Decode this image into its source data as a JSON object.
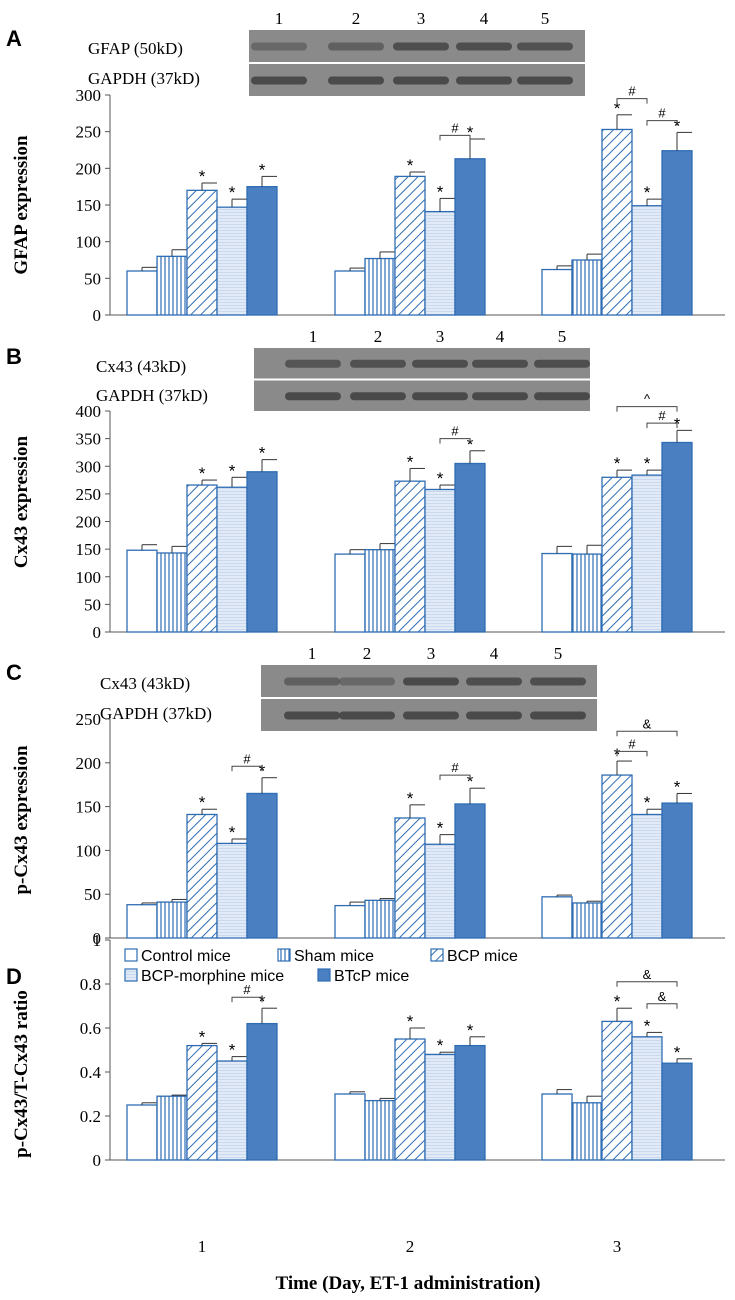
{
  "colors": {
    "series_stroke": "#2e6db4",
    "btcp_fill": "#4a7fc1",
    "bcp_morphine_fill": "#c9d9ee",
    "blot_bg": "#8a8a8a",
    "band": "#3e3e3e"
  },
  "legend_labels": [
    "Control mice",
    "Sham mice",
    "BCP mice",
    "BCP-morphine mice",
    "BTcP mice"
  ],
  "chart_data": [
    {
      "panel": "A",
      "type": "bar",
      "ylabel": "GFAP expression",
      "ylim": [
        0,
        300
      ],
      "yticks": [
        0,
        50,
        100,
        150,
        200,
        250,
        300
      ],
      "tick_labels": [
        "0",
        "50",
        "100",
        "150",
        "200",
        "250",
        "300"
      ],
      "categories": [
        "1",
        "2",
        "3"
      ],
      "series": [
        {
          "name": "Control mice",
          "values": [
            60,
            60,
            62
          ],
          "errors": [
            5,
            4,
            5
          ],
          "stars": [
            false,
            false,
            false
          ]
        },
        {
          "name": "Sham mice",
          "values": [
            80,
            77,
            75
          ],
          "errors": [
            9,
            9,
            8
          ],
          "stars": [
            false,
            false,
            false
          ]
        },
        {
          "name": "BCP mice",
          "values": [
            170,
            189,
            253
          ],
          "errors": [
            10,
            6,
            20
          ],
          "stars": [
            true,
            true,
            true
          ]
        },
        {
          "name": "BCP-morphine mice",
          "values": [
            147,
            141,
            149
          ],
          "errors": [
            11,
            18,
            9
          ],
          "stars": [
            true,
            true,
            true
          ]
        },
        {
          "name": "BTcP mice",
          "values": [
            175,
            213,
            224
          ],
          "errors": [
            14,
            27,
            25
          ],
          "stars": [
            true,
            true,
            true
          ]
        }
      ],
      "brackets": [
        {
          "group": 1,
          "from": 3,
          "to": 4,
          "symbol": "#",
          "value": 245
        },
        {
          "group": 2,
          "from": 2,
          "to": 3,
          "symbol": "#",
          "value": 295
        },
        {
          "group": 2,
          "from": 3,
          "to": 4,
          "symbol": "#",
          "value": 265
        }
      ],
      "blot": {
        "labels": [
          "GFAP (50kD)",
          "GAPDH (37kD)"
        ],
        "lanes": [
          "1",
          "2",
          "3",
          "4",
          "5"
        ]
      }
    },
    {
      "panel": "B",
      "type": "bar",
      "ylabel": "Cx43 expression",
      "ylim": [
        0,
        400
      ],
      "yticks": [
        0,
        50,
        100,
        150,
        200,
        250,
        300,
        350,
        400
      ],
      "tick_labels": [
        "0",
        "50",
        "100",
        "150",
        "200",
        "250",
        "300",
        "350",
        "400"
      ],
      "categories": [
        "1",
        "2",
        "3"
      ],
      "series": [
        {
          "name": "Control mice",
          "values": [
            148,
            141,
            142
          ],
          "errors": [
            10,
            8,
            13
          ],
          "stars": [
            false,
            false,
            false
          ]
        },
        {
          "name": "Sham mice",
          "values": [
            143,
            149,
            141
          ],
          "errors": [
            12,
            11,
            16
          ],
          "stars": [
            false,
            false,
            false
          ]
        },
        {
          "name": "BCP mice",
          "values": [
            266,
            273,
            280
          ],
          "errors": [
            9,
            23,
            13
          ],
          "stars": [
            true,
            true,
            true
          ]
        },
        {
          "name": "BCP-morphine mice",
          "values": [
            262,
            258,
            284
          ],
          "errors": [
            18,
            8,
            9
          ],
          "stars": [
            true,
            true,
            true
          ]
        },
        {
          "name": "BTcP mice",
          "values": [
            290,
            305,
            343
          ],
          "errors": [
            22,
            23,
            22
          ],
          "stars": [
            true,
            true,
            true
          ]
        }
      ],
      "brackets": [
        {
          "group": 1,
          "from": 3,
          "to": 4,
          "symbol": "#",
          "value": 350
        },
        {
          "group": 2,
          "from": 3,
          "to": 4,
          "symbol": "#",
          "value": 378
        },
        {
          "group": 2,
          "from": 2,
          "to": 4,
          "symbol": "^",
          "value": 408
        }
      ],
      "blot": {
        "labels": [
          "Cx43 (43kD)",
          "GAPDH (37kD)"
        ],
        "lanes": [
          "1",
          "2",
          "3",
          "4",
          "5"
        ]
      }
    },
    {
      "panel": "C",
      "type": "bar",
      "ylabel": "p-Cx43 expression",
      "ylim": [
        0,
        250
      ],
      "yticks": [
        0,
        50,
        100,
        150,
        200,
        250
      ],
      "tick_labels": [
        "0",
        "50",
        "100",
        "150",
        "200",
        "250"
      ],
      "categories": [
        "1",
        "2",
        "3"
      ],
      "series": [
        {
          "name": "Control mice",
          "values": [
            38,
            37,
            47
          ],
          "errors": [
            2,
            4,
            2
          ],
          "stars": [
            false,
            false,
            false
          ]
        },
        {
          "name": "Sham mice",
          "values": [
            41,
            43,
            40
          ],
          "errors": [
            3,
            2,
            2
          ],
          "stars": [
            false,
            false,
            false
          ]
        },
        {
          "name": "BCP mice",
          "values": [
            141,
            137,
            186
          ],
          "errors": [
            6,
            15,
            16
          ],
          "stars": [
            true,
            true,
            true
          ]
        },
        {
          "name": "BCP-morphine mice",
          "values": [
            108,
            107,
            141
          ],
          "errors": [
            5,
            11,
            6
          ],
          "stars": [
            true,
            true,
            true
          ]
        },
        {
          "name": "BTcP mice",
          "values": [
            165,
            153,
            154
          ],
          "errors": [
            18,
            18,
            11
          ],
          "stars": [
            true,
            true,
            true
          ]
        }
      ],
      "brackets": [
        {
          "group": 0,
          "from": 3,
          "to": 4,
          "symbol": "#",
          "value": 196
        },
        {
          "group": 1,
          "from": 3,
          "to": 4,
          "symbol": "#",
          "value": 186
        },
        {
          "group": 2,
          "from": 2,
          "to": 3,
          "symbol": "#",
          "value": 213
        },
        {
          "group": 2,
          "from": 2,
          "to": 4,
          "symbol": "&",
          "value": 236
        }
      ],
      "blot": {
        "labels": [
          "Cx43 (43kD)",
          "GAPDH (37kD)"
        ],
        "lanes": [
          "1",
          "2",
          "3",
          "4",
          "5"
        ]
      }
    },
    {
      "panel": "D",
      "type": "bar",
      "ylabel": "p-Cx43/T-Cx43 ratio",
      "xlabel": "Time (Day, ET-1 administration)",
      "ylim": [
        0,
        1
      ],
      "yticks": [
        0,
        0.2,
        0.4,
        0.6,
        0.8,
        1
      ],
      "tick_labels": [
        "0",
        "0.2",
        "0.4",
        "0.6",
        "0.8",
        "1"
      ],
      "categories": [
        "1",
        "2",
        "3"
      ],
      "series": [
        {
          "name": "Control mice",
          "values": [
            0.25,
            0.3,
            0.3
          ],
          "errors": [
            0.01,
            0.01,
            0.02
          ],
          "stars": [
            false,
            false,
            false
          ]
        },
        {
          "name": "Sham mice",
          "values": [
            0.29,
            0.27,
            0.26
          ],
          "errors": [
            0.005,
            0.01,
            0.03
          ],
          "stars": [
            false,
            false,
            false
          ]
        },
        {
          "name": "BCP mice",
          "values": [
            0.52,
            0.55,
            0.63
          ],
          "errors": [
            0.01,
            0.05,
            0.06
          ],
          "stars": [
            true,
            true,
            true
          ]
        },
        {
          "name": "BCP-morphine mice",
          "values": [
            0.45,
            0.48,
            0.56
          ],
          "errors": [
            0.02,
            0.01,
            0.02
          ],
          "stars": [
            true,
            true,
            true
          ]
        },
        {
          "name": "BTcP mice",
          "values": [
            0.62,
            0.52,
            0.44
          ],
          "errors": [
            0.07,
            0.04,
            0.02
          ],
          "stars": [
            true,
            true,
            true
          ]
        }
      ],
      "brackets": [
        {
          "group": 0,
          "from": 3,
          "to": 4,
          "symbol": "#",
          "value": 0.74
        },
        {
          "group": 2,
          "from": 3,
          "to": 4,
          "symbol": "&",
          "value": 0.71
        },
        {
          "group": 2,
          "from": 2,
          "to": 4,
          "symbol": "&",
          "value": 0.81
        }
      ]
    }
  ]
}
